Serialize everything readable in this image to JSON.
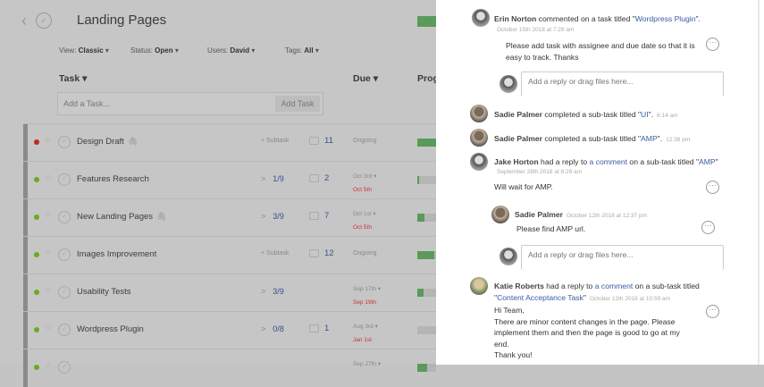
{
  "header": {
    "title": "Landing Pages",
    "back_icon": "chevron-left-icon",
    "complete_icon": "check-circle-icon"
  },
  "filters": {
    "view_label": "View:",
    "view": "Classic",
    "status_label": "Status:",
    "status": "Open",
    "users_label": "Users:",
    "users": "David",
    "tags_label": "Tags:",
    "tags": "All"
  },
  "columns": {
    "task": "Task",
    "due": "Due",
    "progress": "Prog"
  },
  "add_task": {
    "placeholder": "Add a Task...",
    "button": "Add Task"
  },
  "tasks": [
    {
      "name": "Design Draft",
      "priority_color": "#c0281e",
      "attachment": true,
      "subtask": "+ Subtask",
      "comments": "11",
      "due": "Ongoing",
      "progress": 100
    },
    {
      "name": "Features Research",
      "priority_color": "#6aab1e",
      "subtasks": "1/9",
      "comments": "2",
      "start": "Oct 3rd",
      "end": "Oct 5th",
      "progress": 11
    },
    {
      "name": "New Landing Pages",
      "priority_color": "#6aab1e",
      "attachment": true,
      "subtasks": "3/9",
      "comments": "7",
      "start": "Oct 1st",
      "end": "Oct 5th",
      "progress": 40
    },
    {
      "name": "Images Improvement",
      "priority_color": "#6aab1e",
      "subtask": "+ Subtask",
      "comments": "12",
      "due": "Ongoing",
      "progress": 90
    },
    {
      "name": "Usability Tests",
      "priority_color": "#6aab1e",
      "subtasks": "3/9",
      "comments": "",
      "start": "Sep 17th",
      "end": "Sep 19th",
      "progress": 33
    },
    {
      "name": "Wordpress Plugin",
      "priority_color": "#6aab1e",
      "subtasks": "0/8",
      "comments": "1",
      "start": "Aug 3rd",
      "end": "Jan 1st",
      "progress": 0
    },
    {
      "name": "",
      "priority_color": "#6aab1e",
      "subtasks": "",
      "comments": "",
      "start": "Sep 27th",
      "end": "",
      "progress": 50
    }
  ],
  "activity": {
    "reply_placeholder": "Add a reply or drag files here...",
    "a1": {
      "user": "Erin Norton",
      "text": " commented on a task titled \"",
      "link": "Wordpress Plugin",
      "end": "\".",
      "date": "October 15th 2018 at 7:29 am",
      "body1": "Please add task with assignee and due date so that it is",
      "body2": "easy to track. Thanks"
    },
    "a2": {
      "user": "Sadie Palmer",
      "text": " completed a sub-task titled \"",
      "link": "UI",
      "end": "\".",
      "time": "6:14 am"
    },
    "a3": {
      "user": "Sadie Palmer",
      "text": " completed a sub-task titled \"",
      "link": "AMP",
      "end": "\".",
      "time": "12:38 pm"
    },
    "a4": {
      "user": "Jake Horton",
      "text": " had a reply to ",
      "link": "a comment",
      "text2": " on a sub-task titled \"",
      "link2": "AMP",
      "end": "\"",
      "date": "September 28th 2018 at 8:29 am",
      "body": "Will wait for AMP.",
      "reply": {
        "user": "Sadie Palmer",
        "date": "October 12th 2018 at 12:37 pm",
        "body": "Please find AMP url."
      }
    },
    "a5": {
      "user": "Katie Roberts",
      "text": " had a reply to ",
      "link": "a comment",
      "text2": " on a sub-task titled",
      "link2": "Content Acceptance Task",
      "date": "October 12th 2018 at 10:59 am",
      "body": [
        "Hi Team,",
        "There are minor content changes in the page. Please",
        "implement them and then the page is good to go at my",
        "end.",
        "Thank you!"
      ]
    }
  }
}
